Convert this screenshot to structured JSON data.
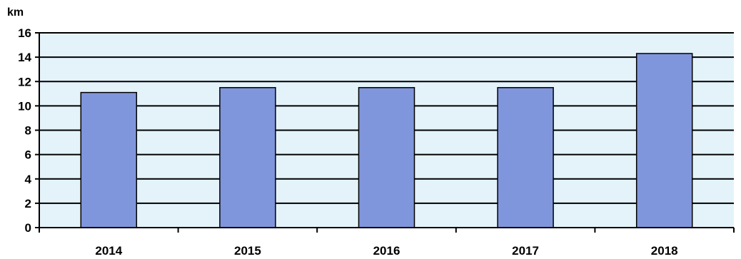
{
  "chart_data": {
    "type": "bar",
    "title": "",
    "xlabel": "",
    "ylabel": "km",
    "categories": [
      "2014",
      "2015",
      "2016",
      "2017",
      "2018"
    ],
    "values": [
      11.1,
      11.5,
      11.5,
      11.5,
      14.3
    ],
    "ylim": [
      0,
      16
    ],
    "yticks": [
      0,
      2,
      4,
      6,
      8,
      10,
      12,
      14,
      16
    ],
    "grid": true,
    "legend": "none",
    "colors": {
      "bar_fill": "#8096DC",
      "bar_stroke": "#000000",
      "plot_background": "#E4F3FA",
      "gridline": "#000000"
    }
  }
}
